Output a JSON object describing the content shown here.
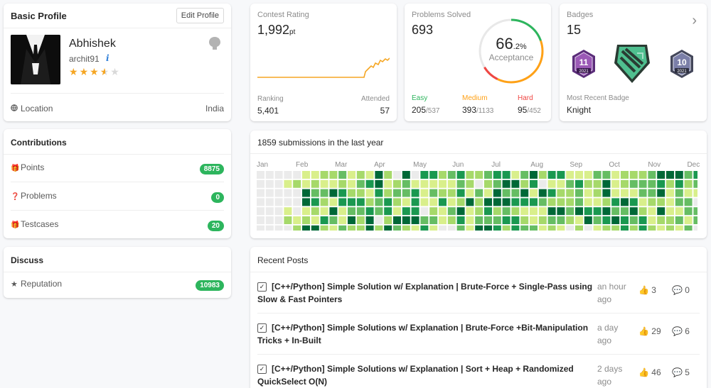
{
  "basic_profile": {
    "title": "Basic Profile",
    "edit_label": "Edit Profile",
    "name": "Abhishek",
    "username": "archit91",
    "info_icon": "i",
    "rating_stars": 3.5,
    "location_label": "Location",
    "location_value": "India"
  },
  "contributions": {
    "title": "Contributions",
    "items": [
      {
        "label": "Points",
        "value": "8875",
        "icon": "gift-icon"
      },
      {
        "label": "Problems",
        "value": "0",
        "icon": "question-icon"
      },
      {
        "label": "Testcases",
        "value": "20",
        "icon": "gift-icon"
      }
    ]
  },
  "discuss": {
    "title": "Discuss",
    "items": [
      {
        "label": "Reputation",
        "value": "10983",
        "icon": "star-icon"
      }
    ]
  },
  "contest": {
    "label": "Contest Rating",
    "rating": "1,992",
    "unit": "pt",
    "ranking_label": "Ranking",
    "ranking": "5,401",
    "attended_label": "Attended",
    "attended": "57",
    "line_color": "#f5a623"
  },
  "solved": {
    "label": "Problems Solved",
    "count": "693",
    "percent": "66",
    "percent_decimal": ".2%",
    "acceptance_label": "Acceptance",
    "acceptance_fraction": 0.662,
    "easy_label": "Easy",
    "easy": "205",
    "easy_total": "/537",
    "medium_label": "Medium",
    "medium": "393",
    "medium_total": "/1133",
    "hard_label": "Hard",
    "hard": "95",
    "hard_total": "/452",
    "colors": {
      "easy": "#2db55d",
      "medium": "#ffa116",
      "hard": "#ef4743"
    }
  },
  "badges": {
    "label": "Badges",
    "count": "15",
    "recent_label": "Most Recent Badge",
    "recent_name": "Knight",
    "items": [
      {
        "icon": "badge-11-icon",
        "number": "11",
        "year": "2021"
      },
      {
        "icon": "knight-badge-icon"
      },
      {
        "icon": "badge-10-icon",
        "number": "10",
        "year": "2021"
      }
    ]
  },
  "heatmap": {
    "title": "1859 submissions in the last year",
    "months": [
      "Jan",
      "Feb",
      "Mar",
      "Apr",
      "May",
      "Jun",
      "Jul",
      "Aug",
      "Sep",
      "Oct",
      "Nov",
      "Dec"
    ],
    "colors": [
      "#ebebeb",
      "#d9ef8b",
      "#a6d96a",
      "#66bd63",
      "#1a9850",
      "#006837"
    ]
  },
  "recent_posts": {
    "title": "Recent Posts",
    "items": [
      {
        "title": "[C++/Python] Simple Solution w/ Explanation | Brute-Force + Single-Pass using Slow & Fast Pointers",
        "time": "an hour ago",
        "likes": "3",
        "comments": "0"
      },
      {
        "title": "[C++/Python] Simple Solutions w/ Explanation | Brute-Force +Bit-Manipulation Tricks + In-Built",
        "time": "a day ago",
        "likes": "29",
        "comments": "6"
      },
      {
        "title": "[C++/Python] Simple Solutions w/ Explanation | Sort + Heap + Randomized QuickSelect O(N)",
        "time": "2 days ago",
        "likes": "46",
        "comments": "5"
      }
    ]
  }
}
